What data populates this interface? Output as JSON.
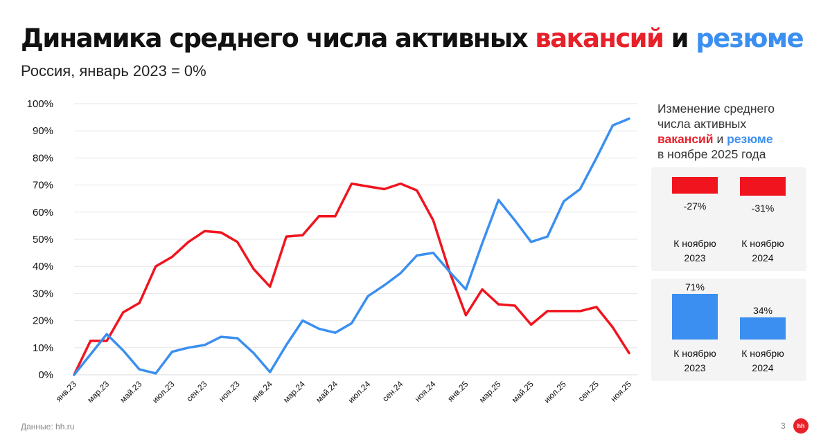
{
  "title": {
    "part1": "Динамика среднего числа активных ",
    "highlight_red": "вакансий",
    "part2": " и ",
    "highlight_blue": "резюме"
  },
  "subtitle": "Россия, январь 2023 = 0%",
  "colors": {
    "vacancies": "#f0141e",
    "resumes": "#3a8ff0",
    "grid": "#e6e6e6",
    "panel_bg": "#f4f4f4"
  },
  "chart_data": {
    "type": "line",
    "title": "Динамика среднего числа активных вакансий и резюме",
    "subtitle": "Россия, январь 2023 = 0%",
    "y_ticks": [
      "0%",
      "10%",
      "20%",
      "30%",
      "40%",
      "50%",
      "60%",
      "70%",
      "80%",
      "90%",
      "100%"
    ],
    "ylim": [
      0,
      100
    ],
    "y_unit": "%",
    "grid": true,
    "x": [
      "янв.23",
      "фев.23",
      "мар.23",
      "апр.23",
      "май.23",
      "июн.23",
      "июл.23",
      "авг.23",
      "сен.23",
      "окт.23",
      "ноя.23",
      "дек.23",
      "янв.24",
      "фев.24",
      "мар.24",
      "апр.24",
      "май.24",
      "июн.24",
      "июл.24",
      "авг.24",
      "сен.24",
      "окт.24",
      "ноя.24",
      "дек.24",
      "янв.25",
      "фев.25",
      "мар.25",
      "апр.25",
      "май.25",
      "июн.25",
      "июл.25",
      "авг.25",
      "сен.25",
      "окт.25",
      "ноя.25"
    ],
    "x_tick_labels": [
      "янв.23",
      "мар.23",
      "май.23",
      "июл.23",
      "сен.23",
      "ноя.23",
      "янв.24",
      "мар.24",
      "май.24",
      "июл.24",
      "сен.24",
      "ноя.24",
      "янв.25",
      "мар.25",
      "май.25",
      "июл.25",
      "сен.25",
      "ноя.25"
    ],
    "series": [
      {
        "key": "vacancies",
        "color": "#f0141e",
        "values": [
          0,
          12.5,
          12.5,
          23,
          26.5,
          40,
          43.5,
          49,
          53,
          52.5,
          49,
          39,
          32.5,
          51,
          51.5,
          58.5,
          58.5,
          70.5,
          69.5,
          68.5,
          70.5,
          68,
          57,
          38,
          22,
          31.5,
          26,
          25.5,
          18.5,
          23.5,
          23.5,
          23.5,
          25,
          17.5,
          8
        ]
      },
      {
        "key": "resumes",
        "color": "#3a8ff0",
        "values": [
          0,
          7.5,
          15,
          9,
          2,
          0.5,
          8.5,
          10,
          11,
          14,
          13.5,
          8,
          1,
          11,
          20,
          17,
          15.5,
          19,
          29,
          33,
          37.5,
          44,
          45,
          38,
          31.5,
          48.5,
          64.5,
          57,
          49,
          51,
          64,
          68.5,
          80,
          92,
          94.5
        ]
      }
    ]
  },
  "panel": {
    "heading_line1": "Изменение среднего",
    "heading_line2": "числа активных",
    "heading_red": "вакансий",
    "heading_and": " и ",
    "heading_blue": "резюме",
    "heading_line4": "в ноябре 2025 года",
    "vacancies": [
      {
        "value": -27,
        "label": "-27%",
        "cap1": "К ноябрю",
        "cap2": "2023"
      },
      {
        "value": -31,
        "label": "-31%",
        "cap1": "К ноябрю",
        "cap2": "2024"
      }
    ],
    "resumes": [
      {
        "value": 71,
        "label": "71%",
        "cap1": "К ноябрю",
        "cap2": "2023"
      },
      {
        "value": 34,
        "label": "34%",
        "cap1": "К ноябрю",
        "cap2": "2024"
      }
    ]
  },
  "footer": {
    "source": "Данные: hh.ru",
    "page": "3",
    "logo_text": "hh"
  }
}
